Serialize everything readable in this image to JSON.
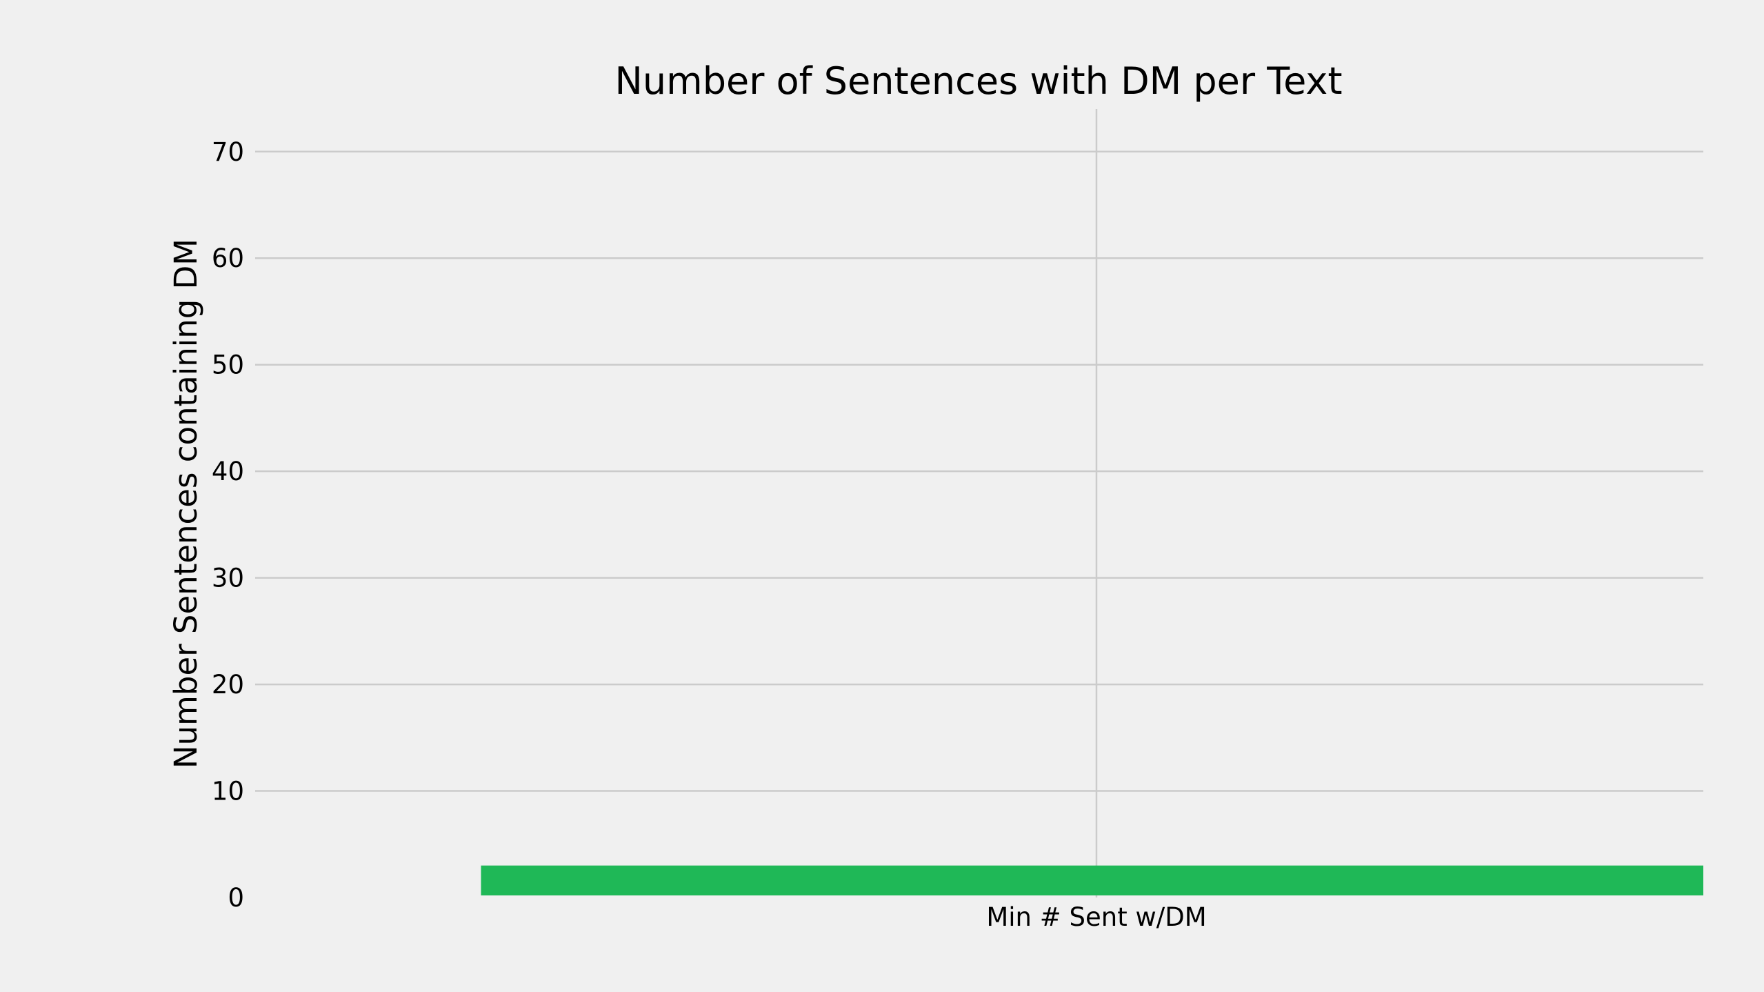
{
  "chart_data": {
    "type": "bar",
    "title": "Number of Sentences with DM per Text",
    "xlabel": "",
    "ylabel": "Number Sentences containing DM",
    "categories": [
      "Min # Sent w/DM"
    ],
    "values": [
      3
    ],
    "ylim": [
      0,
      74
    ],
    "yticks": [
      0,
      10,
      20,
      30,
      40,
      50,
      60,
      70
    ],
    "grid": true,
    "bar_color": "#1fb857",
    "grid_color": "#cbcbcb",
    "background_color": "#f0f0f0"
  }
}
